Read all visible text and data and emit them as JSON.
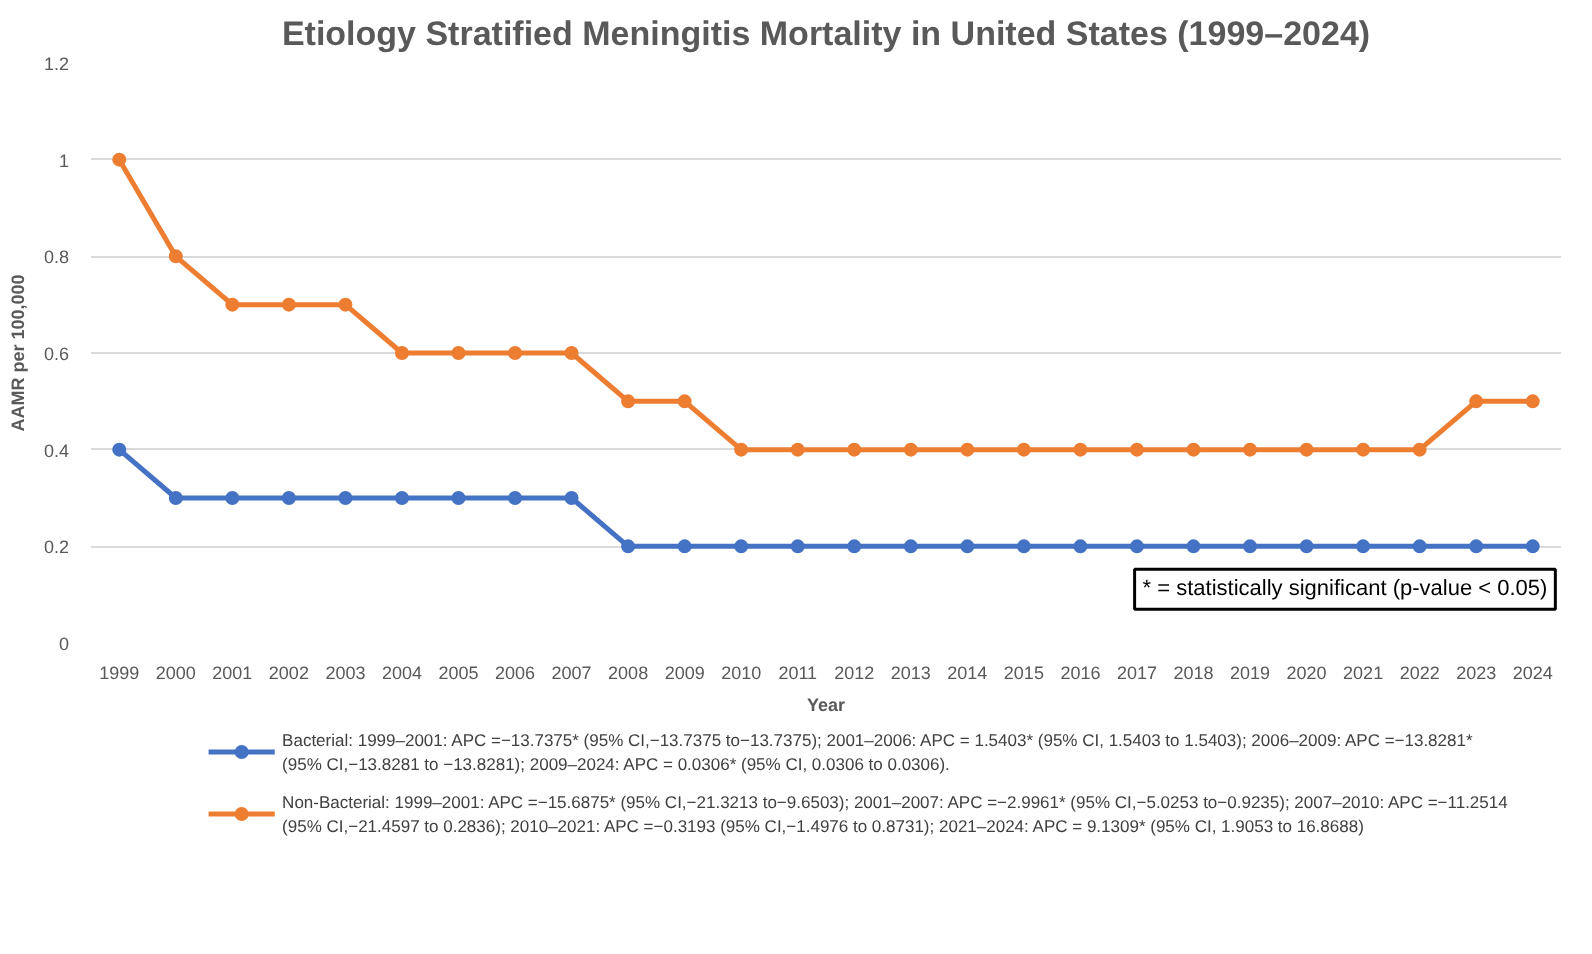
{
  "chart_data": {
    "type": "line",
    "title": "Etiology Stratified Meningitis Mortality in United States (1999–2024)",
    "xlabel": "Year",
    "ylabel": "AAMR per 100,000",
    "categories": [
      "1999",
      "2000",
      "2001",
      "2002",
      "2003",
      "2004",
      "2005",
      "2006",
      "2007",
      "2008",
      "2009",
      "2010",
      "2011",
      "2012",
      "2013",
      "2014",
      "2015",
      "2016",
      "2017",
      "2018",
      "2019",
      "2020",
      "2021",
      "2022",
      "2023",
      "2024"
    ],
    "series": [
      {
        "name": "Bacterial: 1999–2001: APC =−13.7375* (95% CI,−13.7375 to−13.7375); 2001–2006: APC = 1.5403* (95% CI, 1.5403 to 1.5403); 2006–2009: APC =−13.8281* (95% CI,−13.8281 to −13.8281); 2009–2024: APC = 0.0306* (95% CI, 0.0306 to 0.0306).",
        "color": "#4472c4",
        "values": [
          0.4,
          0.3,
          0.3,
          0.3,
          0.3,
          0.3,
          0.3,
          0.3,
          0.3,
          0.2,
          0.2,
          0.2,
          0.2,
          0.2,
          0.2,
          0.2,
          0.2,
          0.2,
          0.2,
          0.2,
          0.2,
          0.2,
          0.2,
          0.2,
          0.2,
          0.2
        ]
      },
      {
        "name": "Non-Bacterial: 1999–2001: APC =−15.6875* (95% CI,−21.3213 to−9.6503); 2001–2007: APC =−2.9961* (95% CI,−5.0253 to−0.9235); 2007–2010: APC =−11.2514 (95% CI,−21.4597 to 0.2836); 2010–2021: APC =−0.3193 (95% CI,−1.4976 to 0.8731); 2021–2024: APC = 9.1309* (95% CI, 1.9053 to 16.8688)",
        "color": "#ed7d31",
        "values": [
          1.0,
          0.8,
          0.7,
          0.7,
          0.7,
          0.6,
          0.6,
          0.6,
          0.6,
          0.5,
          0.5,
          0.4,
          0.4,
          0.4,
          0.4,
          0.4,
          0.4,
          0.4,
          0.4,
          0.4,
          0.4,
          0.4,
          0.4,
          0.4,
          0.5,
          0.5
        ]
      }
    ],
    "ylim": [
      0,
      1.2
    ],
    "yticks": [
      0,
      0.2,
      0.4,
      0.6,
      0.8,
      1,
      1.2
    ],
    "grid": "y",
    "marker": "circle",
    "line_style": "solid",
    "legend": "bottom",
    "annotations": [
      "* = statistically significant (p-value < 0.05)"
    ]
  }
}
